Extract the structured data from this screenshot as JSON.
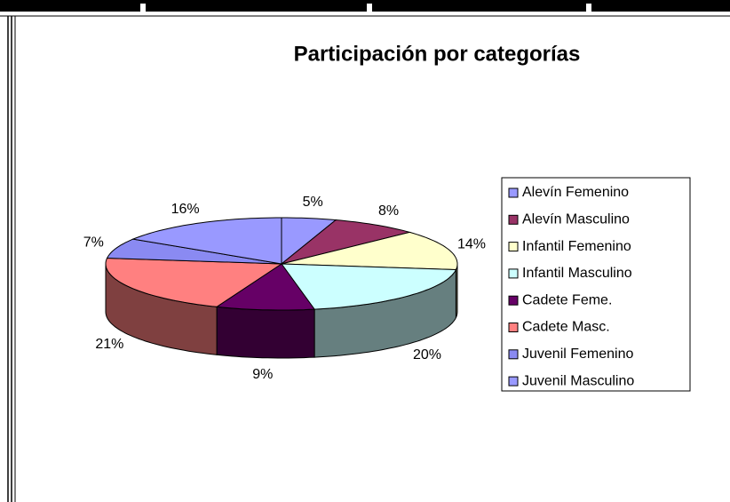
{
  "chart_data": {
    "type": "pie",
    "title": "Participación por categorías",
    "categories": [
      "Alevín Femenino",
      "Alevín Masculino",
      "Infantil Femenino",
      "Infantil Masculino",
      "Cadete Feme.",
      "Cadete Masc.",
      "Juvenil Femenino",
      "Juvenil Masculino"
    ],
    "values": [
      5,
      8,
      14,
      20,
      9,
      21,
      7,
      16
    ],
    "value_labels": [
      "5%",
      "8%",
      "14%",
      "20%",
      "9%",
      "21%",
      "7%",
      "16%"
    ],
    "colors": [
      "#9999ff",
      "#993366",
      "#ffffcc",
      "#ccffff",
      "#660066",
      "#ff8080",
      "#8a8af2",
      "#9999ff"
    ],
    "legend": "right"
  }
}
